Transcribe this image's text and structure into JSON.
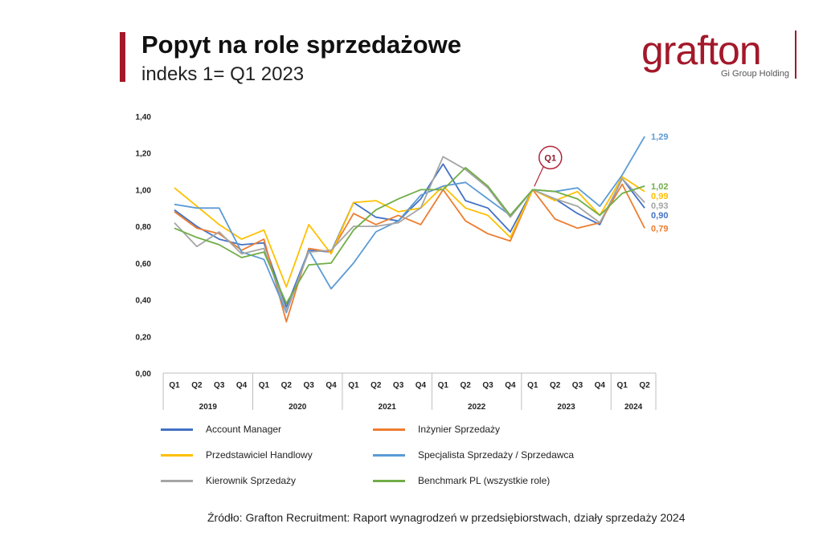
{
  "header": {
    "title": "Popyt na role sprzedażowe",
    "subtitle": "indeks 1= Q1 2023"
  },
  "logo": {
    "word": "grafton",
    "sub": "Gi Group Holding"
  },
  "source": "Źródło: Grafton Recruitment: Raport wynagrodzeń w przedsiębiorstwach, działy sprzedaży 2024",
  "chart_data": {
    "type": "line",
    "title": "",
    "xlabel": "",
    "ylabel": "",
    "ylim": [
      0,
      1.4
    ],
    "yticks": [
      "0,00",
      "0,20",
      "0,40",
      "0,60",
      "0,80",
      "1,00",
      "1,20",
      "1,40"
    ],
    "grid": false,
    "legend_position": "bottom",
    "categories": [
      "Q1",
      "Q2",
      "Q3",
      "Q4",
      "Q1",
      "Q2",
      "Q3",
      "Q4",
      "Q1",
      "Q2",
      "Q3",
      "Q4",
      "Q1",
      "Q2",
      "Q3",
      "Q4",
      "Q1",
      "Q2",
      "Q3",
      "Q4",
      "Q1",
      "Q2"
    ],
    "year_groups": [
      {
        "label": "2019",
        "start": 0,
        "count": 4
      },
      {
        "label": "2020",
        "start": 4,
        "count": 4
      },
      {
        "label": "2021",
        "start": 8,
        "count": 4
      },
      {
        "label": "2022",
        "start": 12,
        "count": 4
      },
      {
        "label": "2023",
        "start": 16,
        "count": 4
      },
      {
        "label": "2024",
        "start": 20,
        "count": 2
      }
    ],
    "annotation": {
      "label": "Q1",
      "index": 16
    },
    "series": [
      {
        "name": "Account Manager",
        "color": "#4472c4",
        "values": [
          0.89,
          0.8,
          0.73,
          0.7,
          0.71,
          0.36,
          0.67,
          0.66,
          0.93,
          0.85,
          0.83,
          0.95,
          1.14,
          0.94,
          0.9,
          0.77,
          1.0,
          0.95,
          0.87,
          0.81,
          1.06,
          0.9
        ],
        "end_label": "0,90"
      },
      {
        "name": "Inżynier Sprzedaży",
        "color": "#ed7d31",
        "values": [
          0.88,
          0.79,
          0.76,
          0.67,
          0.73,
          0.28,
          0.68,
          0.66,
          0.87,
          0.81,
          0.86,
          0.81,
          1.0,
          0.83,
          0.76,
          0.72,
          1.0,
          0.84,
          0.79,
          0.82,
          1.03,
          0.79
        ],
        "end_label": "0,79"
      },
      {
        "name": "Przedstawiciel Handlowy",
        "color": "#ffc000",
        "values": [
          1.01,
          0.91,
          0.81,
          0.73,
          0.78,
          0.47,
          0.81,
          0.65,
          0.93,
          0.94,
          0.88,
          0.9,
          1.02,
          0.9,
          0.86,
          0.74,
          1.0,
          0.94,
          0.99,
          0.86,
          1.07,
          0.99
        ],
        "end_label": "0,99"
      },
      {
        "name": "Specjalista Sprzedaży / Sprzedawca",
        "color": "#5b9bd5",
        "values": [
          0.92,
          0.9,
          0.9,
          0.66,
          0.62,
          0.33,
          0.67,
          0.46,
          0.6,
          0.77,
          0.83,
          0.97,
          1.02,
          1.04,
          0.95,
          0.86,
          1.0,
          0.99,
          1.01,
          0.91,
          1.08,
          1.29
        ],
        "end_label": "1,29"
      },
      {
        "name": "Kierownik Sprzedaży",
        "color": "#a5a5a5",
        "values": [
          0.82,
          0.69,
          0.77,
          0.65,
          0.68,
          0.34,
          0.66,
          0.67,
          0.8,
          0.8,
          0.82,
          0.9,
          1.18,
          1.11,
          1.01,
          0.85,
          1.0,
          0.95,
          0.91,
          0.82,
          1.06,
          0.93
        ],
        "end_label": "0,93"
      },
      {
        "name": "Benchmark PL (wszystkie role)",
        "color": "#70ad47",
        "values": [
          0.79,
          0.74,
          0.7,
          0.63,
          0.66,
          0.38,
          0.59,
          0.6,
          0.78,
          0.89,
          0.95,
          1.0,
          1.0,
          1.12,
          1.02,
          0.86,
          1.0,
          0.99,
          0.95,
          0.86,
          0.98,
          1.02
        ],
        "end_label": "1,02"
      }
    ]
  }
}
